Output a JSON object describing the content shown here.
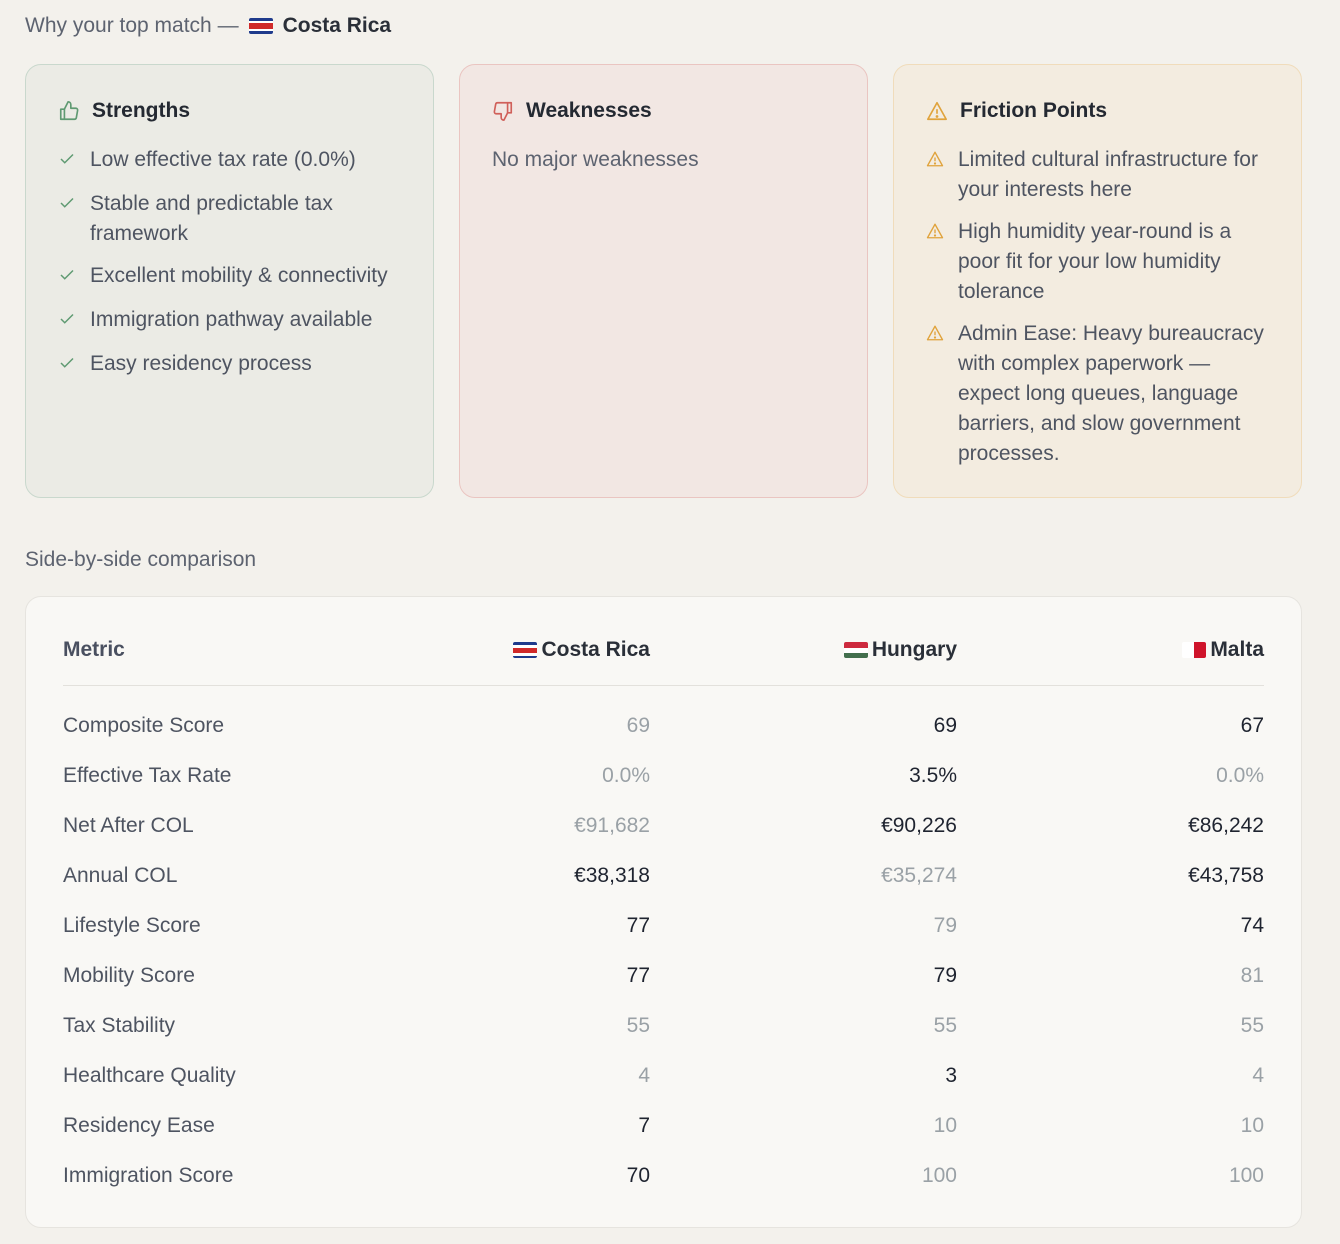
{
  "top_match": {
    "prefix": "Why your top match —",
    "country": "Costa Rica",
    "flag": "costa-rica-flag"
  },
  "strengths": {
    "title": "Strengths",
    "icon": "thumbs-up-icon",
    "items": [
      "Low effective tax rate (0.0%)",
      "Stable and predictable tax framework",
      "Excellent mobility & connectivity",
      "Immigration pathway available",
      "Easy residency process"
    ]
  },
  "weaknesses": {
    "title": "Weaknesses",
    "icon": "thumbs-down-icon",
    "empty_text": "No major weaknesses"
  },
  "friction": {
    "title": "Friction Points",
    "icon": "warning-icon",
    "items": [
      "Limited cultural infrastructure for your interests here",
      "High humidity year-round is a poor fit for your low humidity tolerance",
      "Admin Ease: Heavy bureaucracy with complex paperwork — expect long queues, language barriers, and slow government processes."
    ]
  },
  "comparison": {
    "heading": "Side-by-side comparison",
    "headers": {
      "metric": "Metric",
      "c1": "Costa Rica",
      "c2": "Hungary",
      "c3": "Malta"
    },
    "rows": [
      {
        "metric": "Composite Score",
        "v": [
          "69",
          "69",
          "67"
        ],
        "dim": [
          true,
          false,
          false
        ]
      },
      {
        "metric": "Effective Tax Rate",
        "v": [
          "0.0%",
          "3.5%",
          "0.0%"
        ],
        "dim": [
          true,
          false,
          true
        ]
      },
      {
        "metric": "Net After COL",
        "v": [
          "€91,682",
          "€90,226",
          "€86,242"
        ],
        "dim": [
          true,
          false,
          false
        ]
      },
      {
        "metric": "Annual COL",
        "v": [
          "€38,318",
          "€35,274",
          "€43,758"
        ],
        "dim": [
          false,
          true,
          false
        ]
      },
      {
        "metric": "Lifestyle Score",
        "v": [
          "77",
          "79",
          "74"
        ],
        "dim": [
          false,
          true,
          false
        ]
      },
      {
        "metric": "Mobility Score",
        "v": [
          "77",
          "79",
          "81"
        ],
        "dim": [
          false,
          false,
          true
        ]
      },
      {
        "metric": "Tax Stability",
        "v": [
          "55",
          "55",
          "55"
        ],
        "dim": [
          true,
          true,
          true
        ]
      },
      {
        "metric": "Healthcare Quality",
        "v": [
          "4",
          "3",
          "4"
        ],
        "dim": [
          true,
          false,
          true
        ]
      },
      {
        "metric": "Residency Ease",
        "v": [
          "7",
          "10",
          "10"
        ],
        "dim": [
          false,
          true,
          true
        ]
      },
      {
        "metric": "Immigration Score",
        "v": [
          "70",
          "100",
          "100"
        ],
        "dim": [
          false,
          true,
          true
        ]
      }
    ]
  },
  "colors": {
    "background": "#f3f1ec",
    "strength_green": "#5f9a72",
    "weakness_red": "#d0605a",
    "friction_amber": "#e0a33c",
    "dim_value": "#9aa1a6"
  }
}
